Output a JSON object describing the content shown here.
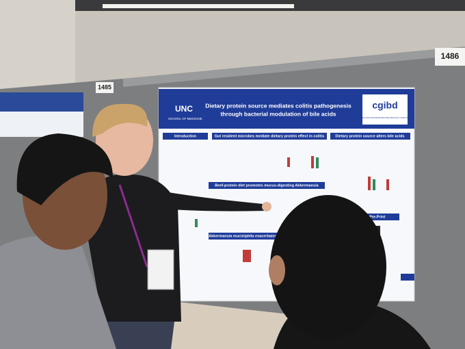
{
  "booths": [
    "1485",
    "1486"
  ],
  "poster": {
    "title_line1": "Dietary protein source mediates colitis pathogenesis",
    "title_line2": "through bacterial modulation of bile acids",
    "institution": "UNC",
    "school": "SCHOOL OF MEDICINE",
    "center_logo": "cgibd",
    "center_name": "CENTER FOR GASTROINTESTINAL BIOLOGY AND DISEASE",
    "sections": [
      "Introduction",
      "Gut resident microbes mediate dietary protein effect in colitis",
      "Dietary protein source alters bile acids",
      "Beef-protein diet promotes mucus-digesting Akkermansia",
      "Akkermansia muciniphila exacerbates",
      "bioRxiv Pre-Print"
    ]
  }
}
